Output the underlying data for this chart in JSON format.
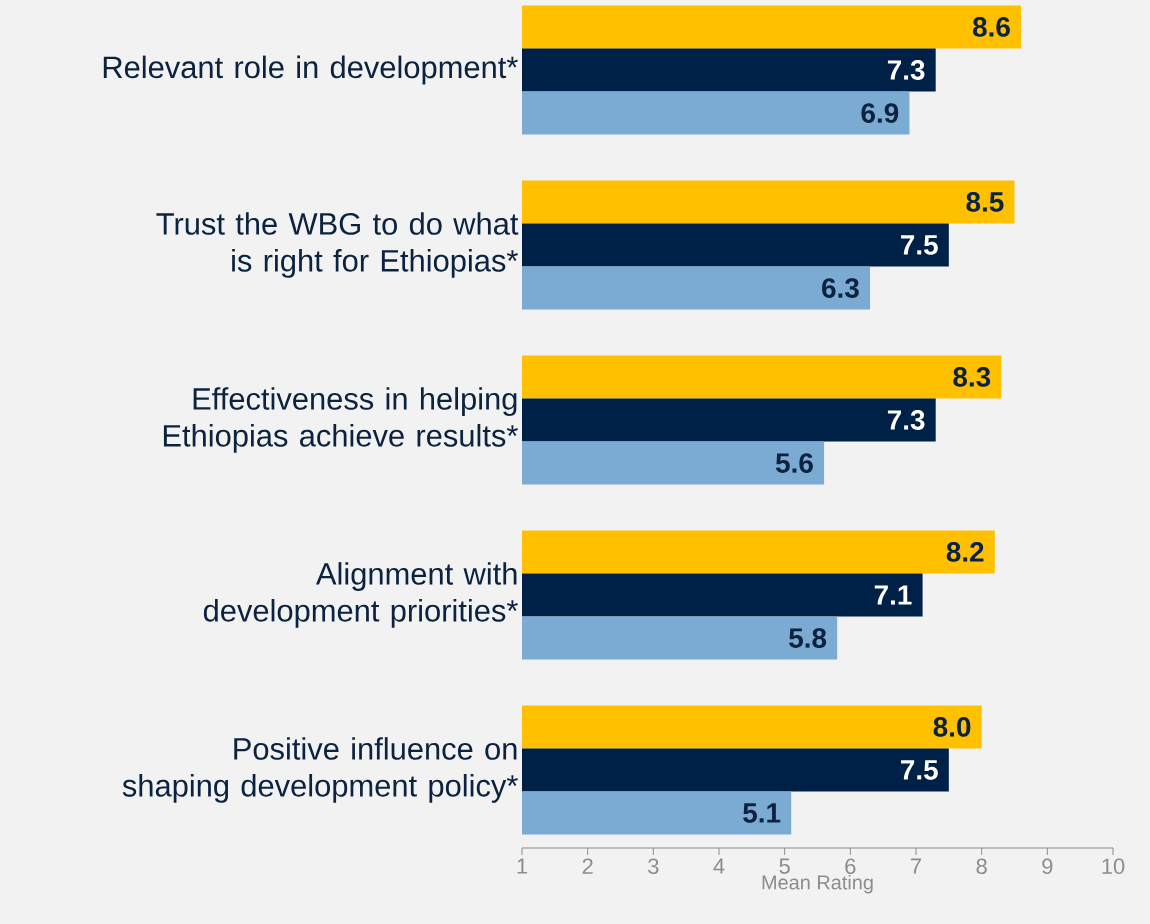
{
  "chart_data": {
    "type": "bar",
    "orientation": "horizontal",
    "categories": [
      "Relevant role in development*",
      "Trust the WBG to do what is right for Ethiopias*",
      "Effectiveness in helping Ethiopias achieve results*",
      "Alignment with development priorities*",
      "Positive influence on shaping development policy*"
    ],
    "series": [
      {
        "color": "#ffc000",
        "values": [
          8.6,
          8.5,
          8.3,
          8.2,
          8.0
        ],
        "value_labels": [
          "8.6",
          "8.5",
          "8.3",
          "8.2",
          "8.0"
        ]
      },
      {
        "color": "#002147",
        "values": [
          7.3,
          7.5,
          7.3,
          7.1,
          7.5
        ],
        "value_labels": [
          "7.3",
          "7.5",
          "7.3",
          "7.1",
          "7.5"
        ]
      },
      {
        "color": "#7baad2",
        "values": [
          6.9,
          6.3,
          5.6,
          5.8,
          5.1
        ],
        "value_labels": [
          "6.9",
          "6.3",
          "5.6",
          "5.8",
          "5.1"
        ]
      }
    ],
    "xlabel": "Mean Rating",
    "xlim": [
      1,
      10
    ],
    "xticks": [
      1,
      2,
      3,
      4,
      5,
      6,
      7,
      8,
      9,
      10
    ]
  }
}
